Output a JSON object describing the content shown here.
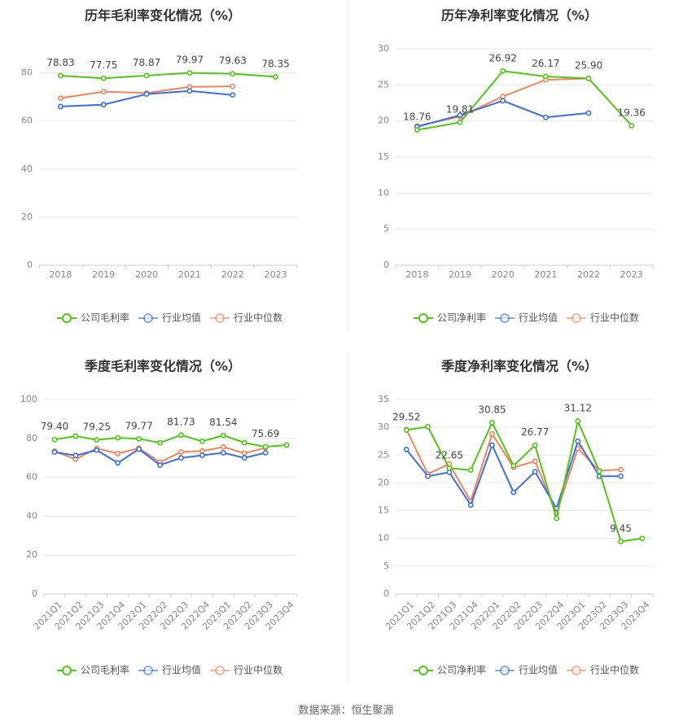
{
  "colors": {
    "company": "#52c41a",
    "industry_avg": "#3b6fd9",
    "industry_median": "#f0845c",
    "grid": "#e8e8e8",
    "axis_text": "#888888",
    "title": "#333333",
    "label": "#444444"
  },
  "legend": {
    "gross": [
      "公司毛利率",
      "行业均值",
      "行业中位数"
    ],
    "net": [
      "公司净利率",
      "行业均值",
      "行业中位数"
    ]
  },
  "source": "数据来源：恒生聚源",
  "chart_data": [
    {
      "type": "line",
      "title": "历年毛利率变化情况（%）",
      "categories": [
        "2018",
        "2019",
        "2020",
        "2021",
        "2022",
        "2023"
      ],
      "ylim": [
        0,
        90
      ],
      "yticks": [
        0,
        20,
        40,
        60,
        80
      ],
      "series": [
        {
          "name": "公司毛利率",
          "values": [
            78.83,
            77.75,
            78.87,
            79.97,
            79.63,
            78.35
          ]
        },
        {
          "name": "行业均值",
          "values": [
            66.0,
            66.8,
            71.2,
            72.5,
            70.8,
            null
          ]
        },
        {
          "name": "行业中位数",
          "values": [
            69.5,
            72.2,
            71.6,
            74.2,
            74.4,
            null
          ]
        }
      ],
      "data_labels": [
        "78.83",
        "77.75",
        "78.87",
        "79.97",
        "79.63",
        "78.35"
      ]
    },
    {
      "type": "line",
      "title": "历年净利率变化情况（%）",
      "categories": [
        "2018",
        "2019",
        "2020",
        "2021",
        "2022",
        "2023"
      ],
      "ylim": [
        0,
        30
      ],
      "yticks": [
        0,
        5,
        10,
        15,
        20,
        25,
        30
      ],
      "series": [
        {
          "name": "公司净利率",
          "values": [
            18.76,
            19.81,
            26.92,
            26.17,
            25.9,
            19.36
          ]
        },
        {
          "name": "行业均值",
          "values": [
            19.2,
            20.8,
            22.8,
            20.5,
            21.1,
            null
          ]
        },
        {
          "name": "行业中位数",
          "values": [
            19.3,
            20.6,
            23.4,
            25.7,
            25.9,
            null
          ]
        }
      ],
      "data_labels": [
        "18.76",
        "19.81",
        "26.92",
        "26.17",
        "25.90",
        "19.36"
      ]
    },
    {
      "type": "line",
      "title": "季度毛利率变化情况（%）",
      "categories": [
        "2021Q1",
        "2021Q2",
        "2021Q3",
        "2021Q4",
        "2022Q1",
        "2022Q2",
        "2022Q3",
        "2022Q4",
        "2023Q1",
        "2023Q2",
        "2023Q3",
        "2023Q4"
      ],
      "ylim": [
        0,
        100
      ],
      "yticks": [
        0,
        20,
        40,
        60,
        80,
        100
      ],
      "series": [
        {
          "name": "公司毛利率",
          "values": [
            79.4,
            81.2,
            79.25,
            80.3,
            79.77,
            77.8,
            81.73,
            78.5,
            81.54,
            77.8,
            75.69,
            76.6
          ]
        },
        {
          "name": "行业均值",
          "values": [
            73.0,
            71.2,
            74.0,
            67.4,
            74.5,
            66.3,
            70.0,
            71.3,
            72.6,
            70.0,
            72.6,
            null
          ]
        },
        {
          "name": "行业中位数",
          "values": [
            73.4,
            69.3,
            74.9,
            72.2,
            75.0,
            67.8,
            73.0,
            73.5,
            75.6,
            72.4,
            75.2,
            null
          ]
        }
      ],
      "data_labels": [
        "79.40",
        "",
        "79.25",
        "",
        "79.77",
        "",
        "81.73",
        "",
        "81.54",
        "",
        "75.69",
        ""
      ]
    },
    {
      "type": "line",
      "title": "季度净利率变化情况（%）",
      "categories": [
        "2021Q1",
        "2021Q2",
        "2021Q3",
        "2021Q4",
        "2022Q1",
        "2022Q2",
        "2022Q3",
        "2022Q4",
        "2023Q1",
        "2023Q2",
        "2023Q3",
        "2023Q4"
      ],
      "ylim": [
        0,
        35
      ],
      "yticks": [
        0,
        5,
        10,
        15,
        20,
        25,
        30,
        35
      ],
      "series": [
        {
          "name": "公司净利率",
          "values": [
            29.52,
            30.1,
            22.65,
            22.3,
            30.85,
            23.1,
            26.77,
            13.6,
            31.12,
            22.1,
            9.45,
            10.0
          ]
        },
        {
          "name": "行业均值",
          "values": [
            26.0,
            21.2,
            21.9,
            16.0,
            26.8,
            18.3,
            22.0,
            15.4,
            27.5,
            21.2,
            21.2,
            null
          ]
        },
        {
          "name": "行业中位数",
          "values": [
            29.6,
            21.6,
            23.4,
            16.7,
            28.8,
            22.8,
            23.9,
            14.5,
            26.2,
            22.2,
            22.4,
            null
          ]
        }
      ],
      "data_labels": [
        "29.52",
        "",
        "22.65",
        "",
        "30.85",
        "",
        "26.77",
        "",
        "31.12",
        "",
        "9.45",
        ""
      ]
    }
  ]
}
